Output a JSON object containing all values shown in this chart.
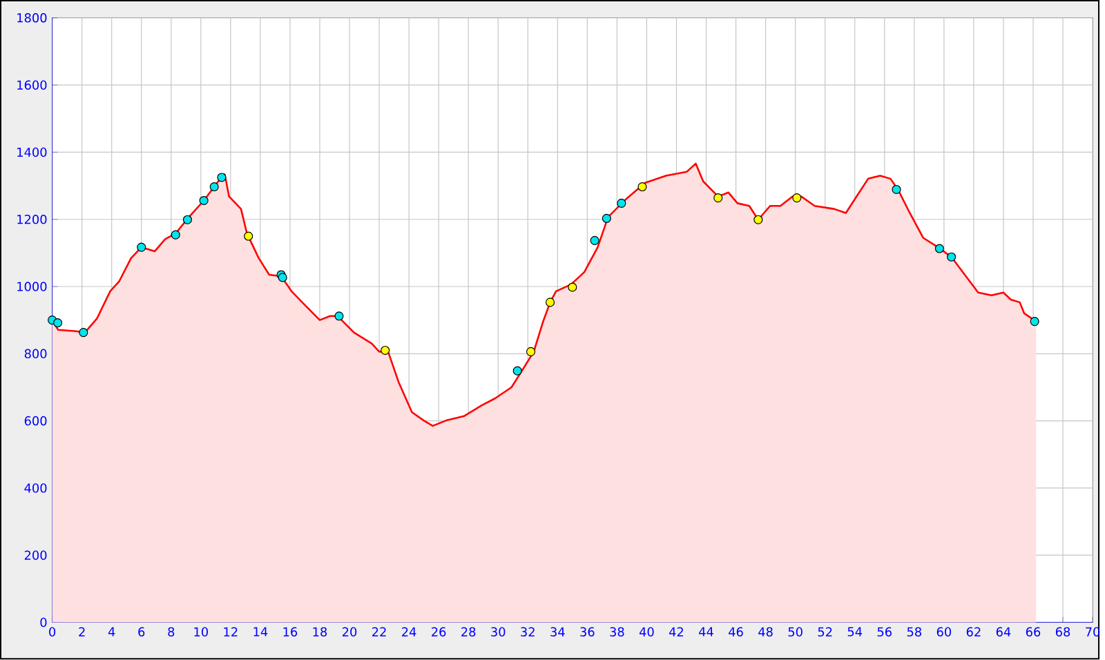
{
  "chart_data": {
    "type": "area",
    "xlim": [
      0,
      70
    ],
    "ylim": [
      0,
      1800
    ],
    "xticks": [
      0,
      2,
      4,
      6,
      8,
      10,
      12,
      14,
      16,
      18,
      20,
      22,
      24,
      26,
      28,
      30,
      32,
      34,
      36,
      38,
      40,
      42,
      44,
      46,
      48,
      50,
      52,
      54,
      56,
      58,
      60,
      62,
      64,
      66,
      68,
      70
    ],
    "yticks": [
      0,
      200,
      400,
      600,
      800,
      1000,
      1200,
      1400,
      1600,
      1800
    ],
    "grid": true,
    "series": [
      {
        "color": "#ff0000",
        "x": [
          0,
          0.4,
          1.6,
          2.2,
          3.0,
          3.9,
          4.5,
          5.3,
          6.0,
          6.9,
          7.6,
          8.3,
          9.2,
          10.2,
          11.1,
          11.6,
          11.7,
          11.9,
          12.7,
          13.1,
          13.9,
          14.6,
          15.4,
          16.1,
          17.0,
          18.0,
          18.7,
          19.2,
          20.3,
          21.5,
          22.0,
          22.6,
          23.3,
          24.2,
          25.0,
          25.6,
          26.5,
          27.7,
          28.9,
          29.8,
          30.9,
          31.6,
          32.4,
          33.0,
          33.5,
          33.9,
          34.9,
          35.8,
          36.7,
          37.4,
          38.6,
          39.9,
          41.3,
          42.7,
          43.3,
          43.8,
          44.8,
          45.5,
          46.1,
          46.9,
          47.5,
          48.3,
          49.0,
          49.8,
          50.4,
          51.3,
          52.6,
          53.4,
          54.0,
          54.9,
          55.7,
          56.4,
          56.9,
          57.7,
          58.6,
          59.6,
          60.5,
          61.2,
          62.3,
          63.2,
          64.0,
          64.5,
          65.1,
          65.4,
          66.2
        ],
        "values": [
          900,
          871,
          867,
          863,
          904,
          986,
          1015,
          1084,
          1117,
          1105,
          1141,
          1158,
          1207,
          1256,
          1309,
          1334,
          1313,
          1268,
          1231,
          1158,
          1084,
          1035,
          1031,
          986,
          945,
          900,
          912,
          912,
          863,
          830,
          806,
          806,
          716,
          626,
          601,
          585,
          601,
          614,
          646,
          667,
          700,
          749,
          806,
          892,
          953,
          986,
          1006,
          1043,
          1117,
          1207,
          1260,
          1309,
          1330,
          1342,
          1366,
          1313,
          1268,
          1280,
          1248,
          1240,
          1199,
          1240,
          1240,
          1268,
          1268,
          1240,
          1231,
          1219,
          1260,
          1321,
          1330,
          1321,
          1289,
          1219,
          1145,
          1117,
          1088,
          1047,
          982,
          974,
          982,
          961,
          953,
          920,
          896
        ]
      },
      {
        "type": "scatter",
        "color": "#00e5ee",
        "marker": "circle",
        "x": [
          0,
          0.37,
          2.1,
          6.0,
          8.3,
          9.1,
          10.2,
          10.9,
          11.4,
          15.4,
          15.5,
          19.3,
          31.3,
          36.5,
          37.3,
          38.3,
          56.8,
          59.7,
          60.5,
          66.1
        ],
        "values": [
          900,
          892,
          863,
          1117,
          1154,
          1199,
          1256,
          1297,
          1325,
          1035,
          1027,
          912,
          749,
          1137,
          1203,
          1248,
          1289,
          1113,
          1088,
          896
        ]
      },
      {
        "type": "scatter",
        "color": "#ffff00",
        "marker": "circle",
        "x": [
          13.2,
          22.4,
          32.2,
          33.5,
          35.0,
          39.7,
          44.8,
          47.5,
          50.1
        ],
        "values": [
          1150,
          810,
          806,
          953,
          998,
          1297,
          1264,
          1199,
          1264
        ]
      }
    ]
  }
}
